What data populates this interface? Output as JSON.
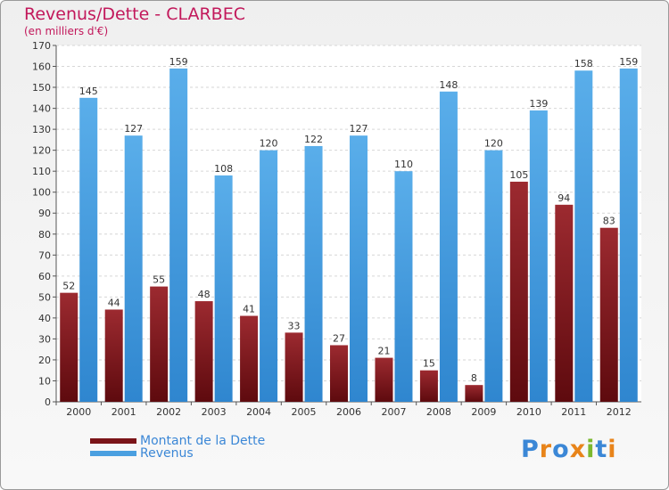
{
  "chart_data": {
    "type": "bar",
    "title": "Revenus/Dette - CLARBEC",
    "subtitle": "(en milliers d'€)",
    "categories": [
      "2000",
      "2001",
      "2002",
      "2003",
      "2004",
      "2005",
      "2006",
      "2007",
      "2008",
      "2009",
      "2010",
      "2011",
      "2012"
    ],
    "series": [
      {
        "name": "Montant de la Dette",
        "color": "#7b1418",
        "values": [
          52,
          44,
          55,
          48,
          41,
          33,
          27,
          21,
          15,
          8,
          105,
          94,
          83
        ]
      },
      {
        "name": "Revenus",
        "color": "#4a9fe0",
        "values": [
          145,
          127,
          159,
          108,
          120,
          122,
          127,
          110,
          148,
          120,
          139,
          158,
          159
        ]
      }
    ],
    "ylim": [
      0,
      170
    ],
    "yticks": [
      0,
      10,
      20,
      30,
      40,
      50,
      60,
      70,
      80,
      90,
      100,
      110,
      120,
      130,
      140,
      150,
      160,
      170
    ],
    "grid": true,
    "legend_position": "bottom-left"
  },
  "brand": {
    "letters": [
      "P",
      "r",
      "o",
      "x",
      "i",
      "t",
      "i"
    ],
    "colors": [
      "#3b87d6",
      "#e8841a",
      "#3b87d6",
      "#e8841a",
      "#7cb82f",
      "#3b87d6",
      "#e8841a"
    ]
  }
}
